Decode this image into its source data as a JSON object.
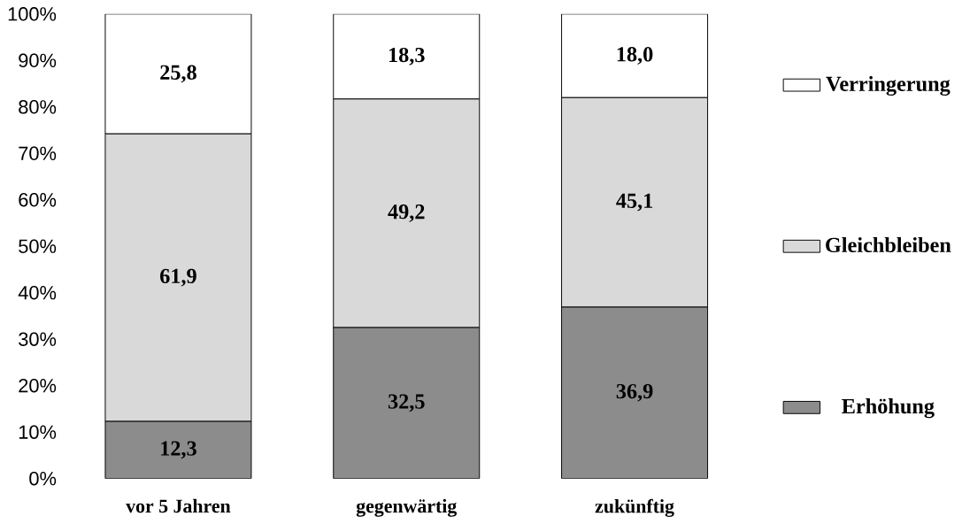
{
  "chart_data": {
    "type": "bar",
    "stacked": true,
    "categories": [
      "vor 5 Jahren",
      "gegenwärtig",
      "zukünftig"
    ],
    "series": [
      {
        "name": "Erhöhung",
        "color": "#8c8c8c",
        "values": [
          12.3,
          32.5,
          36.9
        ],
        "value_labels": [
          "12,3",
          "32,5",
          "36,9"
        ]
      },
      {
        "name": "Gleichbleiben",
        "color": "#d9d9d9",
        "values": [
          61.9,
          49.2,
          45.1
        ],
        "value_labels": [
          "61,9",
          "49,2",
          "45,1"
        ]
      },
      {
        "name": "Verringerung",
        "color": "#ffffff",
        "values": [
          25.8,
          18.3,
          18.0
        ],
        "value_labels": [
          "25,8",
          "18,3",
          "18,0"
        ]
      }
    ],
    "ylim": [
      0,
      100
    ],
    "yticks": [
      {
        "value": 0,
        "label": "0%"
      },
      {
        "value": 10,
        "label": "10%"
      },
      {
        "value": 20,
        "label": "20%"
      },
      {
        "value": 30,
        "label": "30%"
      },
      {
        "value": 40,
        "label": "40%"
      },
      {
        "value": 50,
        "label": "50%"
      },
      {
        "value": 60,
        "label": "60%"
      },
      {
        "value": 70,
        "label": "70%"
      },
      {
        "value": 80,
        "label": "80%"
      },
      {
        "value": 90,
        "label": "90%"
      },
      {
        "value": 100,
        "label": "100%"
      }
    ],
    "grid": false,
    "legend": "right"
  }
}
